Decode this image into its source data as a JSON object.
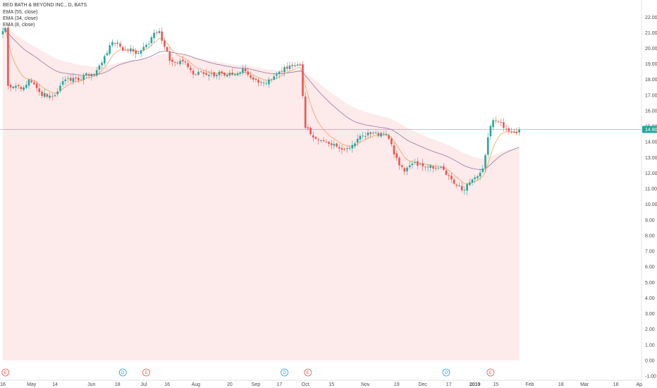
{
  "header": {
    "title": "BED BATH & BEYOND INC., D, BATS",
    "indicators": [
      "EMA (55, close)",
      "EMA (34, close)",
      "EMA (8, close)"
    ]
  },
  "colors": {
    "up": "#26a69a",
    "down": "#ef5350",
    "ema55_fill": "#fde6e6",
    "ema34": "#9575a8",
    "ema8": "#f5a25d",
    "last_price": "#26a69a",
    "dividend": "#2196f3",
    "earnings": "#ef5350"
  },
  "chart_data": {
    "type": "candlestick",
    "title": "BED BATH & BEYOND INC., D, BATS",
    "ylim": [
      -1,
      22.6
    ],
    "y_ticks": [
      "22.00",
      "21.00",
      "20.00",
      "19.00",
      "18.00",
      "17.00",
      "16.00",
      "15.00",
      "14.00",
      "13.00",
      "12.00",
      "11.00",
      "10.00",
      "9.00",
      "8.00",
      "7.00",
      "6.00",
      "5.00",
      "4.00",
      "3.00",
      "2.00",
      "1.00",
      "0.00",
      "-1.00"
    ],
    "y_tick_values": [
      22,
      21,
      20,
      19,
      18,
      17,
      16,
      15,
      14,
      13,
      12,
      11,
      10,
      9,
      8,
      7,
      6,
      5,
      4,
      3,
      2,
      1,
      0,
      -1
    ],
    "x_ticks": [
      {
        "label": "16",
        "bar": 0
      },
      {
        "label": "May",
        "bar": 11
      },
      {
        "label": "14",
        "bar": 20
      },
      {
        "label": "Jun",
        "bar": 34
      },
      {
        "label": "18",
        "bar": 44
      },
      {
        "label": "Jul",
        "bar": 54
      },
      {
        "label": "16",
        "bar": 63
      },
      {
        "label": "Aug",
        "bar": 74
      },
      {
        "label": "20",
        "bar": 87
      },
      {
        "label": "Sep",
        "bar": 97
      },
      {
        "label": "17",
        "bar": 106
      },
      {
        "label": "Oct",
        "bar": 116
      },
      {
        "label": "15",
        "bar": 126
      },
      {
        "label": "Nov",
        "bar": 139
      },
      {
        "label": "19",
        "bar": 151
      },
      {
        "label": "Dec",
        "bar": 161
      },
      {
        "label": "17",
        "bar": 171
      },
      {
        "label": "2019",
        "bar": 181
      },
      {
        "label": "15",
        "bar": 189
      },
      {
        "label": "Feb",
        "bar": 202
      },
      {
        "label": "18",
        "bar": 214
      },
      {
        "label": "Mar",
        "bar": 223
      },
      {
        "label": "18",
        "bar": 235
      },
      {
        "label": "Ap",
        "bar": 244
      }
    ],
    "price_anchors": [
      [
        0,
        21.1
      ],
      [
        1,
        21.3
      ],
      [
        2,
        17.6
      ],
      [
        3,
        17.5
      ],
      [
        5,
        17.6
      ],
      [
        8,
        17.5
      ],
      [
        10,
        18.0
      ],
      [
        12,
        17.7
      ],
      [
        14,
        17.2
      ],
      [
        17,
        16.9
      ],
      [
        20,
        17.0
      ],
      [
        22,
        17.6
      ],
      [
        24,
        18.0
      ],
      [
        27,
        18.1
      ],
      [
        30,
        18.0
      ],
      [
        32,
        18.4
      ],
      [
        35,
        18.3
      ],
      [
        37,
        18.9
      ],
      [
        39,
        19.5
      ],
      [
        41,
        20.2
      ],
      [
        43,
        20.3
      ],
      [
        45,
        20.1
      ],
      [
        47,
        19.9
      ],
      [
        50,
        19.8
      ],
      [
        52,
        19.7
      ],
      [
        54,
        20.1
      ],
      [
        56,
        20.3
      ],
      [
        58,
        21.0
      ],
      [
        60,
        21.1
      ],
      [
        62,
        20.1
      ],
      [
        64,
        19.2
      ],
      [
        66,
        19.1
      ],
      [
        68,
        19.2
      ],
      [
        70,
        19.1
      ],
      [
        72,
        18.6
      ],
      [
        74,
        18.3
      ],
      [
        76,
        18.5
      ],
      [
        78,
        18.3
      ],
      [
        80,
        18.4
      ],
      [
        82,
        18.3
      ],
      [
        84,
        18.4
      ],
      [
        86,
        18.3
      ],
      [
        88,
        18.3
      ],
      [
        90,
        18.4
      ],
      [
        92,
        18.7
      ],
      [
        94,
        18.3
      ],
      [
        96,
        18.0
      ],
      [
        98,
        17.8
      ],
      [
        100,
        17.8
      ],
      [
        102,
        18.0
      ],
      [
        104,
        18.2
      ],
      [
        106,
        18.5
      ],
      [
        108,
        18.8
      ],
      [
        110,
        18.9
      ],
      [
        112,
        18.9
      ],
      [
        114,
        18.9
      ],
      [
        116,
        14.9
      ],
      [
        118,
        14.5
      ],
      [
        120,
        14.2
      ],
      [
        122,
        14.1
      ],
      [
        124,
        14.0
      ],
      [
        126,
        13.8
      ],
      [
        128,
        13.7
      ],
      [
        130,
        13.5
      ],
      [
        132,
        13.6
      ],
      [
        134,
        13.8
      ],
      [
        136,
        14.2
      ],
      [
        138,
        14.4
      ],
      [
        140,
        14.6
      ],
      [
        142,
        14.6
      ],
      [
        144,
        14.4
      ],
      [
        146,
        14.5
      ],
      [
        148,
        14.2
      ],
      [
        150,
        13.2
      ],
      [
        152,
        12.5
      ],
      [
        154,
        12.1
      ],
      [
        156,
        12.5
      ],
      [
        158,
        12.7
      ],
      [
        160,
        12.6
      ],
      [
        162,
        12.4
      ],
      [
        164,
        12.5
      ],
      [
        166,
        12.3
      ],
      [
        168,
        12.4
      ],
      [
        170,
        11.9
      ],
      [
        172,
        11.6
      ],
      [
        174,
        11.2
      ],
      [
        176,
        10.9
      ],
      [
        178,
        11.3
      ],
      [
        180,
        11.6
      ],
      [
        182,
        11.8
      ],
      [
        184,
        12.3
      ],
      [
        186,
        14.3
      ],
      [
        188,
        15.4
      ],
      [
        190,
        15.3
      ],
      [
        192,
        14.9
      ],
      [
        194,
        14.7
      ],
      [
        196,
        14.6
      ],
      [
        198,
        14.8
      ]
    ],
    "last_bar": 198,
    "last_price": "14.80",
    "last_price_value": 14.8,
    "right_edge_bar": 247,
    "ema55_start": 21.4,
    "ema34_start": 21.2,
    "ema8_start": 21.3,
    "events": [
      {
        "type": "earnings",
        "label": "E",
        "bar": 1
      },
      {
        "type": "dividend",
        "label": "D",
        "bar": 46
      },
      {
        "type": "earnings",
        "label": "E",
        "bar": 55
      },
      {
        "type": "dividend",
        "label": "D",
        "bar": 108
      },
      {
        "type": "earnings",
        "label": "E",
        "bar": 117
      },
      {
        "type": "dividend",
        "label": "D",
        "bar": 170
      },
      {
        "type": "earnings",
        "label": "E",
        "bar": 187
      }
    ]
  }
}
